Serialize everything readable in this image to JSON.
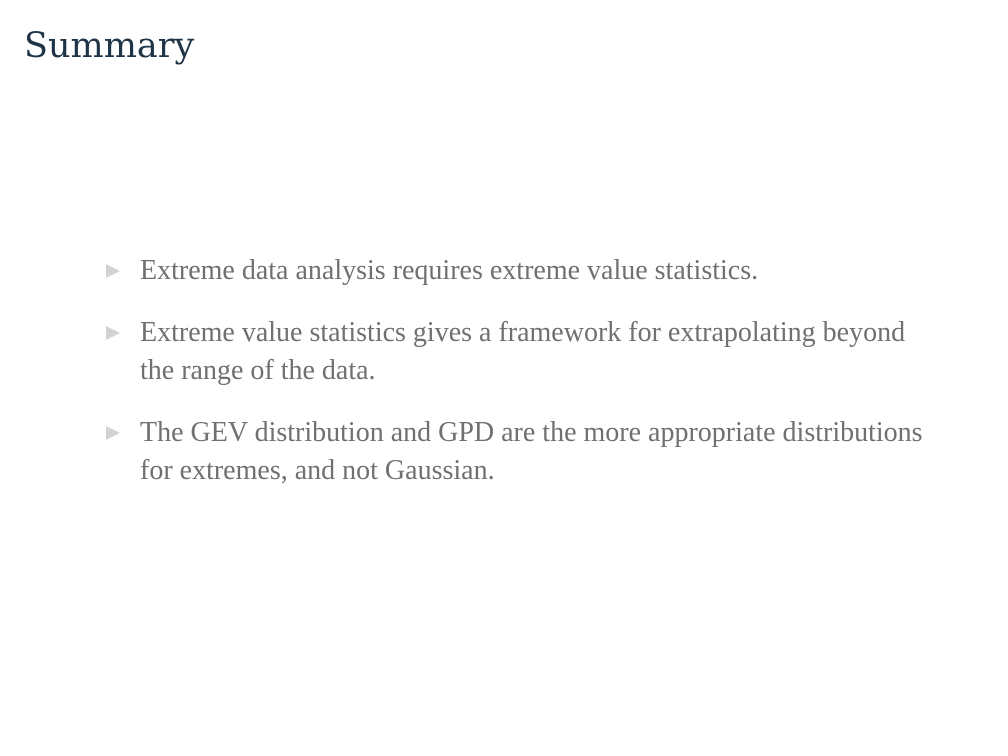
{
  "slide": {
    "title": "Summary",
    "bullets": [
      {
        "icon": "triangle-bullet-icon",
        "text": "Extreme data analysis requires extreme value statistics."
      },
      {
        "icon": "triangle-bullet-icon",
        "text": "Extreme value statistics gives a framework for extrapolating beyond the range of the data."
      },
      {
        "icon": "triangle-bullet-icon",
        "text": "The GEV distribution and GPD are the more appropriate distributions for extremes, and not Gaussian."
      }
    ]
  },
  "colors": {
    "title": "#1f3446",
    "body_text": "#707070",
    "bullet_marker": "#d3d3d3",
    "background": "#ffffff"
  }
}
